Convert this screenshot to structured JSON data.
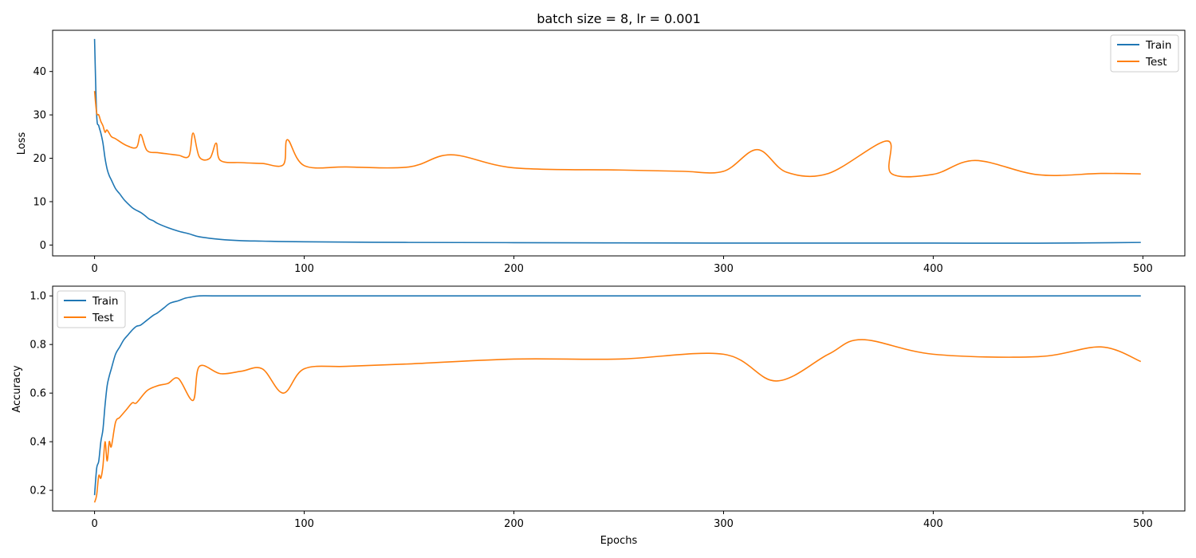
{
  "colors": {
    "train": "#1f77b4",
    "test": "#ff7f0e"
  },
  "chart_data": [
    {
      "type": "line",
      "title": "batch size = 8, lr = 0.001",
      "xlabel": "",
      "ylabel": "Loss",
      "xlim": [
        -20,
        520
      ],
      "ylim": [
        -2.5,
        49.5
      ],
      "xticks": [
        0,
        100,
        200,
        300,
        400,
        500
      ],
      "yticks": [
        0,
        10,
        20,
        30,
        40
      ],
      "legend_position": "upper right",
      "grid": false,
      "series": [
        {
          "name": "Train",
          "color": "#1f77b4",
          "x": [
            0,
            1,
            2,
            3,
            4,
            5,
            6,
            7,
            8,
            10,
            12,
            14,
            16,
            18,
            20,
            22,
            24,
            26,
            28,
            30,
            35,
            40,
            45,
            50,
            60,
            70,
            80,
            100,
            150,
            200,
            250,
            300,
            350,
            400,
            450,
            499
          ],
          "y": [
            47.5,
            30.0,
            27.5,
            25.8,
            23.5,
            20.0,
            17.5,
            16.0,
            15.0,
            13.0,
            11.8,
            10.5,
            9.5,
            8.6,
            8.0,
            7.5,
            6.8,
            6.0,
            5.6,
            5.0,
            4.0,
            3.2,
            2.6,
            1.9,
            1.3,
            1.0,
            0.9,
            0.75,
            0.6,
            0.55,
            0.5,
            0.45,
            0.45,
            0.45,
            0.42,
            0.6
          ]
        },
        {
          "name": "Test",
          "color": "#ff7f0e",
          "x": [
            0,
            1,
            2,
            3,
            4,
            5,
            6,
            8,
            10,
            15,
            20,
            22,
            25,
            30,
            35,
            40,
            45,
            47,
            50,
            55,
            58,
            60,
            70,
            80,
            90,
            92,
            100,
            120,
            150,
            170,
            200,
            250,
            280,
            300,
            316,
            330,
            350,
            378,
            380,
            400,
            420,
            450,
            480,
            499
          ],
          "y": [
            35.5,
            30.5,
            30.0,
            28.5,
            27.5,
            26.0,
            26.5,
            25.0,
            24.5,
            23.0,
            22.5,
            25.5,
            21.8,
            21.3,
            21.0,
            20.7,
            20.5,
            25.8,
            20.3,
            20.0,
            23.5,
            19.5,
            19.0,
            18.8,
            18.5,
            24.3,
            18.3,
            18.0,
            18.0,
            20.8,
            17.8,
            17.3,
            17.0,
            17.0,
            22.0,
            16.8,
            16.5,
            24.0,
            16.5,
            16.3,
            19.5,
            16.2,
            16.5,
            16.4
          ]
        }
      ]
    },
    {
      "type": "line",
      "title": "",
      "xlabel": "Epochs",
      "ylabel": "Accuracy",
      "xlim": [
        -20,
        520
      ],
      "ylim": [
        0.115,
        1.04
      ],
      "xticks": [
        0,
        100,
        200,
        300,
        400,
        500
      ],
      "yticks": [
        0.2,
        0.4,
        0.6,
        0.8,
        1.0
      ],
      "legend_position": "upper left",
      "grid": false,
      "series": [
        {
          "name": "Train",
          "color": "#1f77b4",
          "x": [
            0,
            1,
            2,
            3,
            4,
            5,
            6,
            7,
            8,
            10,
            12,
            14,
            16,
            18,
            20,
            22,
            25,
            28,
            30,
            33,
            36,
            40,
            43,
            46,
            50,
            60,
            100,
            200,
            300,
            400,
            499
          ],
          "y": [
            0.18,
            0.29,
            0.32,
            0.4,
            0.45,
            0.55,
            0.63,
            0.67,
            0.7,
            0.76,
            0.79,
            0.82,
            0.84,
            0.86,
            0.875,
            0.88,
            0.9,
            0.92,
            0.93,
            0.95,
            0.97,
            0.98,
            0.99,
            0.995,
            1.0,
            1.0,
            1.0,
            1.0,
            1.0,
            1.0,
            1.0
          ]
        },
        {
          "name": "Test",
          "color": "#ff7f0e",
          "x": [
            0,
            1,
            2,
            3,
            4,
            5,
            6,
            7,
            8,
            10,
            12,
            15,
            18,
            20,
            25,
            30,
            35,
            40,
            47,
            50,
            60,
            70,
            80,
            90,
            100,
            120,
            150,
            200,
            250,
            300,
            325,
            350,
            366,
            400,
            450,
            480,
            499
          ],
          "y": [
            0.15,
            0.18,
            0.26,
            0.25,
            0.3,
            0.4,
            0.32,
            0.4,
            0.38,
            0.48,
            0.5,
            0.53,
            0.56,
            0.56,
            0.61,
            0.63,
            0.64,
            0.66,
            0.57,
            0.71,
            0.68,
            0.69,
            0.7,
            0.6,
            0.7,
            0.71,
            0.72,
            0.74,
            0.74,
            0.76,
            0.65,
            0.76,
            0.82,
            0.76,
            0.75,
            0.79,
            0.73
          ]
        }
      ]
    }
  ]
}
